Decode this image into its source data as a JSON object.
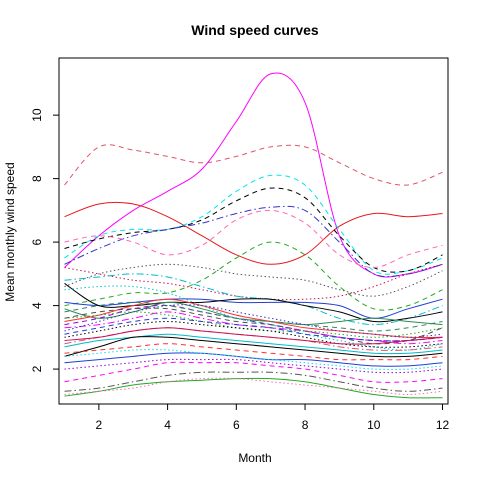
{
  "chart_data": {
    "type": "line",
    "title": "Wind speed curves",
    "xlabel": "Month",
    "ylabel": "Mean monthly wind speed",
    "xlim": [
      0.84,
      12.16
    ],
    "ylim": [
      0.9,
      11.8
    ],
    "x_ticks": [
      "2",
      "4",
      "6",
      "8",
      "10",
      "12"
    ],
    "y_ticks": [
      "2",
      "4",
      "6",
      "8",
      "10"
    ],
    "x": [
      1,
      2,
      3,
      4,
      5,
      6,
      7,
      8,
      9,
      10,
      11,
      12
    ],
    "series": [
      {
        "color": "#ff00ff",
        "dash": "solid",
        "values": [
          5.2,
          6.2,
          7.0,
          7.6,
          8.3,
          9.8,
          11.3,
          10.4,
          6.2,
          5.0,
          5.0,
          5.3
        ]
      },
      {
        "color": "#df536b",
        "dash": "dashed",
        "values": [
          7.8,
          9.0,
          8.9,
          8.7,
          8.5,
          8.7,
          9.0,
          9.0,
          8.5,
          8.0,
          7.8,
          8.2
        ]
      },
      {
        "color": "#e41a1c",
        "dash": "solid",
        "values": [
          6.8,
          7.2,
          7.2,
          6.8,
          6.2,
          5.6,
          5.3,
          5.6,
          6.5,
          6.9,
          6.8,
          6.9
        ]
      },
      {
        "color": "#00e5ee",
        "dash": "dashed",
        "values": [
          5.5,
          6.2,
          6.4,
          6.4,
          6.8,
          7.6,
          8.1,
          7.8,
          6.4,
          5.1,
          5.1,
          5.5
        ]
      },
      {
        "color": "#000000",
        "dash": "dashed",
        "values": [
          5.8,
          6.1,
          6.3,
          6.4,
          6.7,
          7.3,
          7.7,
          7.4,
          6.2,
          5.2,
          5.1,
          5.6
        ]
      },
      {
        "color": "#3333cc",
        "dash": "dashdot",
        "values": [
          5.3,
          5.8,
          6.2,
          6.4,
          6.6,
          6.9,
          7.1,
          7.0,
          6.0,
          5.0,
          5.0,
          5.3
        ]
      },
      {
        "color": "#ff69b4",
        "dash": "dashed",
        "values": [
          6.0,
          6.2,
          6.0,
          5.6,
          5.9,
          6.7,
          7.0,
          6.6,
          5.6,
          5.2,
          5.6,
          5.9
        ]
      },
      {
        "color": "#22aa22",
        "dash": "dashed",
        "values": [
          4.0,
          4.2,
          4.4,
          4.4,
          4.8,
          5.5,
          6.0,
          5.6,
          4.6,
          3.9,
          4.0,
          4.5
        ]
      },
      {
        "color": "#cc1155",
        "dash": "dotted",
        "values": [
          5.2,
          5.0,
          4.8,
          4.7,
          4.5,
          4.3,
          4.2,
          4.2,
          4.3,
          4.6,
          5.0,
          5.3
        ]
      },
      {
        "color": "#555555",
        "dash": "dotted",
        "values": [
          4.6,
          5.0,
          5.2,
          5.3,
          5.2,
          5.0,
          4.9,
          4.8,
          4.5,
          4.3,
          4.6,
          5.1
        ]
      },
      {
        "color": "#00bbcc",
        "dash": "dashdot",
        "values": [
          4.8,
          4.9,
          5.0,
          4.9,
          4.6,
          4.3,
          4.2,
          4.0,
          3.6,
          3.4,
          3.6,
          4.0
        ]
      },
      {
        "color": "#1f3fd6",
        "dash": "solid",
        "values": [
          4.1,
          4.0,
          4.1,
          4.2,
          4.2,
          4.1,
          4.1,
          4.1,
          4.0,
          3.6,
          3.9,
          4.2
        ]
      },
      {
        "color": "#000000",
        "dash": "solid",
        "values": [
          4.7,
          4.0,
          4.0,
          4.1,
          4.1,
          4.2,
          4.2,
          4.0,
          3.8,
          3.5,
          3.6,
          3.8
        ]
      },
      {
        "color": "#2e8b57",
        "dash": "solid",
        "values": [
          3.9,
          3.6,
          3.8,
          4.1,
          3.9,
          3.6,
          3.5,
          3.4,
          3.5,
          3.6,
          3.5,
          3.4
        ]
      },
      {
        "color": "#ff3030",
        "dash": "solid",
        "values": [
          3.5,
          3.7,
          4.0,
          4.2,
          4.0,
          3.7,
          3.5,
          3.3,
          3.2,
          3.1,
          3.0,
          3.0
        ]
      },
      {
        "color": "#9400d3",
        "dash": "dashed",
        "values": [
          3.4,
          3.6,
          3.9,
          4.0,
          3.8,
          3.6,
          3.4,
          3.2,
          3.0,
          2.9,
          2.9,
          3.0
        ]
      },
      {
        "color": "#00c5cd",
        "dash": "dotted",
        "values": [
          4.5,
          4.6,
          4.6,
          4.4,
          4.0,
          3.6,
          3.4,
          3.1,
          2.9,
          2.7,
          2.6,
          2.8
        ]
      },
      {
        "color": "#4d4d4d",
        "dash": "dashed",
        "values": [
          3.6,
          3.8,
          3.9,
          3.9,
          3.7,
          3.5,
          3.4,
          3.2,
          3.0,
          2.8,
          2.9,
          3.3
        ]
      },
      {
        "color": "#ff00ff",
        "dash": "dashdot",
        "values": [
          3.3,
          3.4,
          3.6,
          3.8,
          3.6,
          3.4,
          3.3,
          3.2,
          3.0,
          2.9,
          2.8,
          2.9
        ]
      },
      {
        "color": "#22aa22",
        "dash": "dotted",
        "values": [
          3.6,
          3.7,
          3.8,
          3.7,
          3.5,
          3.3,
          3.2,
          3.2,
          3.1,
          3.0,
          3.1,
          3.3
        ]
      },
      {
        "color": "#1f3fd6",
        "dash": "dashed",
        "values": [
          3.1,
          3.3,
          3.5,
          3.6,
          3.5,
          3.4,
          3.3,
          3.1,
          3.0,
          2.9,
          2.9,
          3.0
        ]
      },
      {
        "color": "#000000",
        "dash": "dotted",
        "values": [
          3.0,
          3.2,
          3.4,
          3.5,
          3.4,
          3.3,
          3.2,
          3.0,
          2.8,
          2.7,
          2.7,
          2.8
        ]
      },
      {
        "color": "#df536b",
        "dash": "dashdot",
        "values": [
          2.8,
          3.0,
          3.2,
          3.3,
          3.2,
          3.1,
          3.0,
          2.9,
          2.7,
          2.6,
          2.6,
          2.7
        ]
      },
      {
        "color": "#00bbcc",
        "dash": "solid",
        "values": [
          2.7,
          2.9,
          3.0,
          3.1,
          3.0,
          2.9,
          2.8,
          2.7,
          2.6,
          2.5,
          2.5,
          2.6
        ]
      },
      {
        "color": "#000000",
        "dash": "solid",
        "values": [
          2.4,
          2.7,
          3.0,
          3.0,
          2.9,
          2.8,
          2.7,
          2.6,
          2.5,
          2.4,
          2.4,
          2.5
        ]
      },
      {
        "color": "#ff3030",
        "dash": "dashed",
        "values": [
          2.5,
          2.6,
          2.7,
          2.8,
          2.7,
          2.6,
          2.5,
          2.4,
          2.3,
          2.3,
          2.3,
          2.4
        ]
      },
      {
        "color": "#1f3fd6",
        "dash": "solid",
        "values": [
          2.2,
          2.3,
          2.4,
          2.5,
          2.5,
          2.4,
          2.3,
          2.3,
          2.2,
          2.1,
          2.1,
          2.2
        ]
      },
      {
        "color": "#9400d3",
        "dash": "dotted",
        "values": [
          2.0,
          2.1,
          2.2,
          2.3,
          2.3,
          2.3,
          2.2,
          2.1,
          2.0,
          1.9,
          1.9,
          2.0
        ]
      },
      {
        "color": "#ff00ff",
        "dash": "dashed",
        "values": [
          1.6,
          1.8,
          2.0,
          2.2,
          2.2,
          2.2,
          2.1,
          2.0,
          1.8,
          1.6,
          1.6,
          1.7
        ]
      },
      {
        "color": "#555555",
        "dash": "dashdot",
        "values": [
          1.3,
          1.4,
          1.6,
          1.8,
          1.9,
          1.9,
          1.9,
          1.8,
          1.6,
          1.4,
          1.3,
          1.4
        ]
      },
      {
        "color": "#22aa22",
        "dash": "solid",
        "values": [
          1.15,
          1.3,
          1.5,
          1.6,
          1.65,
          1.7,
          1.7,
          1.6,
          1.4,
          1.2,
          1.1,
          1.1
        ]
      },
      {
        "color": "#ff69b4",
        "dash": "dotted",
        "values": [
          1.2,
          1.3,
          1.4,
          1.6,
          1.7,
          1.7,
          1.6,
          1.5,
          1.4,
          1.3,
          1.2,
          1.3
        ]
      },
      {
        "color": "#00e5ee",
        "dash": "dotted",
        "values": [
          2.4,
          2.5,
          2.6,
          2.6,
          2.5,
          2.4,
          2.3,
          2.2,
          2.1,
          2.0,
          2.0,
          2.1
        ]
      },
      {
        "color": "#2e8b57",
        "dash": "dashed",
        "values": [
          3.8,
          4.0,
          4.1,
          4.0,
          3.8,
          3.6,
          3.5,
          3.4,
          3.3,
          3.2,
          3.3,
          3.5
        ]
      },
      {
        "color": "#cc1155",
        "dash": "solid",
        "values": [
          2.9,
          3.0,
          3.2,
          3.3,
          3.2,
          3.1,
          3.0,
          2.9,
          2.8,
          2.8,
          2.9,
          3.0
        ]
      },
      {
        "color": "#3333cc",
        "dash": "dotted",
        "values": [
          3.2,
          3.5,
          3.8,
          4.0,
          4.0,
          3.8,
          3.6,
          3.4,
          3.2,
          3.1,
          3.0,
          3.1
        ]
      }
    ]
  }
}
